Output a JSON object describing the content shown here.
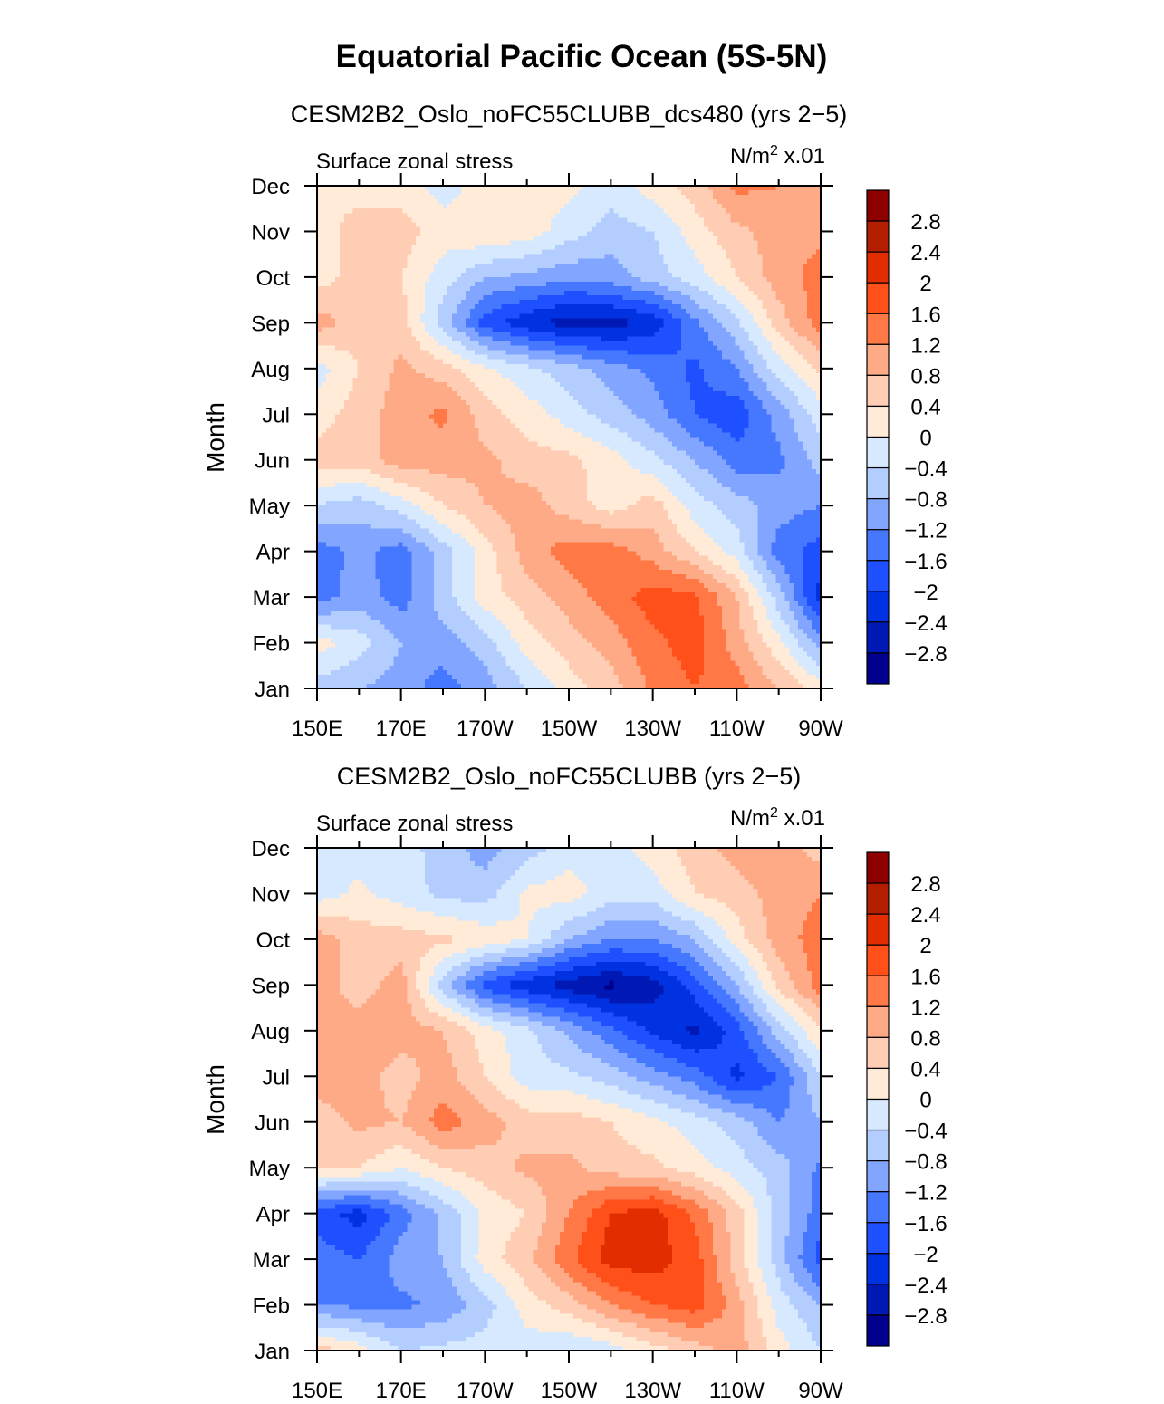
{
  "page": {
    "title": "Equatorial Pacific Ocean (5S-5N)"
  },
  "chart_data": [
    {
      "type": "heatmap",
      "title": "CESM2B2_Oslo_noFC55CLUBB_dcs480 (yrs 2−5)",
      "left_label": "Surface zonal stress",
      "units_label": "N/m",
      "units_sup": "2",
      "units_scale": "x.01",
      "ylabel": "Month",
      "x_values": [
        150,
        160,
        170,
        180,
        190,
        200,
        210,
        220,
        230,
        240,
        250,
        260,
        270
      ],
      "x_tick_labels": [
        "150E",
        "170E",
        "170W",
        "150W",
        "130W",
        "110W",
        "90W"
      ],
      "y_tick_labels": [
        "Jan",
        "Feb",
        "Mar",
        "Apr",
        "May",
        "Jun",
        "Jul",
        "Aug",
        "Sep",
        "Oct",
        "Nov",
        "Dec"
      ],
      "levels": [
        -2.8,
        -2.4,
        -2,
        -1.6,
        -1.2,
        -0.8,
        -0.4,
        0,
        0.4,
        0.8,
        1.2,
        1.6,
        2,
        2.4,
        2.8
      ],
      "colorbar_labels": [
        "2.8",
        "2.4",
        "2",
        "1.6",
        "1.2",
        "0.8",
        "0.4",
        "0",
        "−0.4",
        "−0.8",
        "−1.2",
        "−1.6",
        "−2",
        "−2.4",
        "−2.8"
      ],
      "z": [
        [
          -0.6,
          -0.8,
          -1.0,
          -1.4,
          -1.0,
          -0.4,
          0.2,
          0.6,
          1.3,
          1.6,
          1.4,
          0.8,
          0.2
        ],
        [
          0.2,
          -0.2,
          -0.8,
          -1.0,
          -0.6,
          0.2,
          0.6,
          1.0,
          1.5,
          1.8,
          1.0,
          0.1,
          -1.0
        ],
        [
          -1.4,
          -1.0,
          -1.4,
          -0.6,
          0.2,
          0.6,
          1.0,
          1.4,
          1.8,
          1.7,
          0.8,
          -0.6,
          -2.2
        ],
        [
          -1.4,
          -1.1,
          -1.4,
          -0.6,
          0.2,
          1.0,
          1.4,
          1.4,
          1.0,
          0.4,
          -0.2,
          -1.4,
          -1.8
        ],
        [
          -0.4,
          -0.6,
          -0.2,
          0.4,
          0.8,
          1.0,
          0.6,
          0.2,
          0.6,
          -0.2,
          -0.6,
          -1.0,
          -1.2
        ],
        [
          0.6,
          0.6,
          1.0,
          1.0,
          0.9,
          0.6,
          0.5,
          0.2,
          -0.3,
          -0.8,
          -1.4,
          -1.3,
          -0.6
        ],
        [
          0.2,
          0.6,
          1.0,
          1.3,
          0.6,
          0.2,
          -0.2,
          -0.6,
          -1.0,
          -1.6,
          -1.9,
          -1.0,
          -0.2
        ],
        [
          -0.2,
          0.4,
          0.9,
          0.6,
          0.1,
          -0.3,
          -0.6,
          -1.0,
          -1.3,
          -1.7,
          -1.2,
          -0.2,
          0.5
        ],
        [
          1.0,
          0.6,
          0.6,
          -0.6,
          -1.8,
          -2.3,
          -2.6,
          -2.6,
          -2.3,
          -1.3,
          -0.5,
          0.6,
          1.4
        ],
        [
          0.2,
          0.6,
          0.4,
          -0.2,
          -0.8,
          -0.9,
          -1.1,
          -1.0,
          -0.6,
          -0.2,
          0.4,
          1.0,
          1.4
        ],
        [
          0.2,
          0.6,
          0.6,
          0.2,
          0.4,
          0.2,
          -0.2,
          -0.6,
          -0.4,
          0.2,
          0.7,
          1.0,
          1.1
        ],
        [
          0.4,
          0.2,
          0.2,
          -0.2,
          0.2,
          0.2,
          0.1,
          -0.2,
          0.2,
          0.6,
          1.3,
          1.2,
          1.0
        ]
      ]
    },
    {
      "type": "heatmap",
      "title": "CESM2B2_Oslo_noFC55CLUBB (yrs 2−5)",
      "left_label": "Surface zonal stress",
      "units_label": "N/m",
      "units_sup": "2",
      "units_scale": "x.01",
      "ylabel": "Month",
      "x_values": [
        150,
        160,
        170,
        180,
        190,
        200,
        210,
        220,
        230,
        240,
        250,
        260,
        270
      ],
      "x_tick_labels": [
        "150E",
        "170E",
        "170W",
        "150W",
        "130W",
        "110W",
        "90W"
      ],
      "y_tick_labels": [
        "Jan",
        "Feb",
        "Mar",
        "Apr",
        "May",
        "Jun",
        "Jul",
        "Aug",
        "Sep",
        "Oct",
        "Nov",
        "Dec"
      ],
      "levels": [
        -2.8,
        -2.4,
        -2,
        -1.6,
        -1.2,
        -0.8,
        -0.4,
        0,
        0.4,
        0.8,
        1.2,
        1.6,
        2,
        2.4,
        2.8
      ],
      "colorbar_labels": [
        "2.8",
        "2.4",
        "2",
        "1.6",
        "1.2",
        "0.8",
        "0.4",
        "0",
        "−0.4",
        "−0.8",
        "−1.2",
        "−1.6",
        "−2",
        "−2.4",
        "−2.8"
      ],
      "z": [
        [
          0.6,
          0.2,
          -0.4,
          -0.3,
          -0.2,
          -0.2,
          -0.4,
          -0.2,
          0.2,
          0.6,
          1.0,
          0.2,
          -0.4
        ],
        [
          -1.2,
          -1.3,
          -1.3,
          -1.1,
          -0.6,
          0.2,
          0.6,
          1.2,
          1.6,
          1.8,
          1.0,
          -0.2,
          -0.8
        ],
        [
          -1.4,
          -1.6,
          -1.0,
          -0.8,
          0.2,
          0.7,
          1.5,
          2.2,
          2.2,
          1.8,
          0.6,
          -0.6,
          -1.8
        ],
        [
          -1.8,
          -2.2,
          -1.4,
          -0.7,
          0.1,
          0.4,
          1.2,
          2.0,
          2.2,
          1.5,
          0.6,
          -0.6,
          -1.4
        ],
        [
          0.4,
          0.4,
          0.0,
          0.4,
          0.6,
          0.9,
          0.9,
          0.6,
          0.5,
          0.2,
          -0.2,
          -0.6,
          -1.3
        ],
        [
          0.6,
          0.9,
          0.8,
          1.4,
          1.0,
          0.6,
          0.6,
          0.4,
          0.1,
          -0.2,
          -0.6,
          -1.2,
          -0.8
        ],
        [
          1.0,
          1.0,
          0.6,
          1.0,
          0.4,
          -0.2,
          -0.3,
          -0.6,
          -1.0,
          -1.4,
          -2.1,
          -1.6,
          -0.4
        ],
        [
          1.0,
          1.0,
          1.0,
          0.8,
          0.2,
          -0.3,
          -0.9,
          -1.5,
          -2.1,
          -2.5,
          -1.8,
          -0.6,
          0.4
        ],
        [
          1.0,
          0.6,
          1.0,
          -0.6,
          -1.8,
          -2.3,
          -2.6,
          -2.9,
          -2.6,
          -1.8,
          -0.8,
          0.5,
          1.4
        ],
        [
          1.0,
          0.6,
          0.6,
          0.5,
          0.3,
          0.0,
          -0.8,
          -1.2,
          -1.2,
          -0.8,
          0.2,
          1.0,
          1.4
        ],
        [
          -0.2,
          0.1,
          -0.2,
          -0.5,
          -0.6,
          0.1,
          0.2,
          -0.2,
          -0.2,
          0.4,
          0.6,
          1.0,
          1.2
        ],
        [
          -0.2,
          -0.2,
          -0.2,
          -0.6,
          -1.0,
          -0.6,
          -0.2,
          -0.2,
          0.2,
          0.6,
          1.0,
          1.0,
          0.6
        ]
      ]
    }
  ],
  "colors": [
    "#00008c",
    "#0019b4",
    "#0032e1",
    "#1e50ff",
    "#4678ff",
    "#82a5ff",
    "#b4cdff",
    "#d7e9ff",
    "#ffebd7",
    "#ffcdb4",
    "#ffaa87",
    "#ff7846",
    "#ff5019",
    "#e12d00",
    "#b41e00",
    "#8c0000"
  ]
}
